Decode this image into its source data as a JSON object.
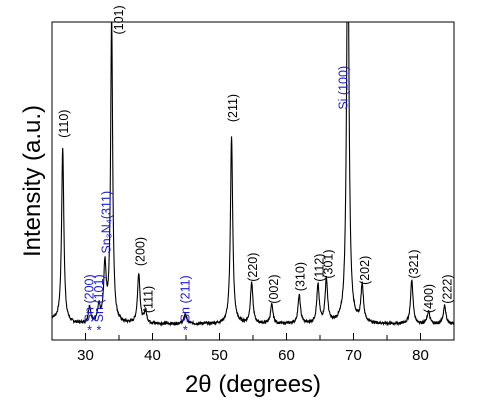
{
  "chart_data": {
    "type": "line",
    "title": "",
    "xlabel": "2θ (degrees)",
    "ylabel": "Intensity (a.u.)",
    "xlim": [
      25,
      85
    ],
    "ylim": [
      0,
      100
    ],
    "x_ticks": [
      "30",
      "40",
      "50",
      "60",
      "70",
      "80"
    ],
    "y_ticks_shown": false,
    "grid": false,
    "legend": "none",
    "line_color": "#000000",
    "label_colors": {
      "sn_o2": "#000000",
      "secondary_phase": "#1a1ad6"
    },
    "peaks": [
      {
        "x": 26.6,
        "height": 56,
        "width": 0.2
      },
      {
        "x": 30.6,
        "height": 5,
        "width": 0.22
      },
      {
        "x": 32.0,
        "height": 5,
        "width": 0.22
      },
      {
        "x": 32.9,
        "height": 18,
        "width": 0.22
      },
      {
        "x": 33.9,
        "height": 98,
        "width": 0.18
      },
      {
        "x": 37.95,
        "height": 16,
        "width": 0.22
      },
      {
        "x": 38.95,
        "height": 4,
        "width": 0.22
      },
      {
        "x": 44.9,
        "height": 3,
        "width": 0.25
      },
      {
        "x": 51.8,
        "height": 60,
        "width": 0.2
      },
      {
        "x": 54.8,
        "height": 13,
        "width": 0.22
      },
      {
        "x": 57.8,
        "height": 6,
        "width": 0.22
      },
      {
        "x": 61.9,
        "height": 9,
        "width": 0.22
      },
      {
        "x": 64.7,
        "height": 12,
        "width": 0.22
      },
      {
        "x": 65.95,
        "height": 14,
        "width": 0.22
      },
      {
        "x": 69.15,
        "height": 130,
        "width": 0.22
      },
      {
        "x": 71.3,
        "height": 12,
        "width": 0.22
      },
      {
        "x": 78.7,
        "height": 14,
        "width": 0.22
      },
      {
        "x": 81.2,
        "height": 4,
        "width": 0.22
      },
      {
        "x": 83.6,
        "height": 6,
        "width": 0.22
      }
    ],
    "baseline": 3.5,
    "annotations": [
      {
        "text": "(110)",
        "x": 26.8,
        "y": 63,
        "color": "sn_o2"
      },
      {
        "text": "Sn (200)",
        "x": 30.6,
        "y": 1.5,
        "color": "secondary_phase",
        "star": true
      },
      {
        "text": "Sn (101)",
        "x": 32.0,
        "y": 1.5,
        "color": "secondary_phase",
        "star": true
      },
      {
        "text": "Sn₃N₄(311)",
        "x": 33.1,
        "y": 26,
        "color": "secondary_phase"
      },
      {
        "text": "(101)",
        "x": 35.0,
        "y": 96,
        "color": "sn_o2"
      },
      {
        "text": "(200)",
        "x": 38.2,
        "y": 22,
        "color": "sn_o2"
      },
      {
        "text": "(111)",
        "x": 39.4,
        "y": 7,
        "color": "sn_o2"
      },
      {
        "text": "Sn (211)",
        "x": 44.9,
        "y": 1.5,
        "color": "secondary_phase",
        "star": true
      },
      {
        "text": "(211)",
        "x": 52.0,
        "y": 68,
        "color": "sn_o2"
      },
      {
        "text": "(220)",
        "x": 55.0,
        "y": 17,
        "color": "sn_o2"
      },
      {
        "text": "(002)",
        "x": 58.1,
        "y": 10,
        "color": "sn_o2"
      },
      {
        "text": "(310)",
        "x": 62.1,
        "y": 14,
        "color": "sn_o2"
      },
      {
        "text": "(112)",
        "x": 64.9,
        "y": 17,
        "color": "sn_o2"
      },
      {
        "text": "(301)",
        "x": 66.3,
        "y": 18,
        "color": "sn_o2"
      },
      {
        "text": "Si (100)",
        "x": 68.5,
        "y": 72,
        "color": "secondary_phase"
      },
      {
        "text": "(202)",
        "x": 71.7,
        "y": 16,
        "color": "sn_o2"
      },
      {
        "text": "(321)",
        "x": 79.0,
        "y": 18,
        "color": "sn_o2"
      },
      {
        "text": "(400)",
        "x": 81.3,
        "y": 7,
        "color": "sn_o2"
      },
      {
        "text": "(222)",
        "x": 84.0,
        "y": 10,
        "color": "sn_o2"
      }
    ]
  }
}
